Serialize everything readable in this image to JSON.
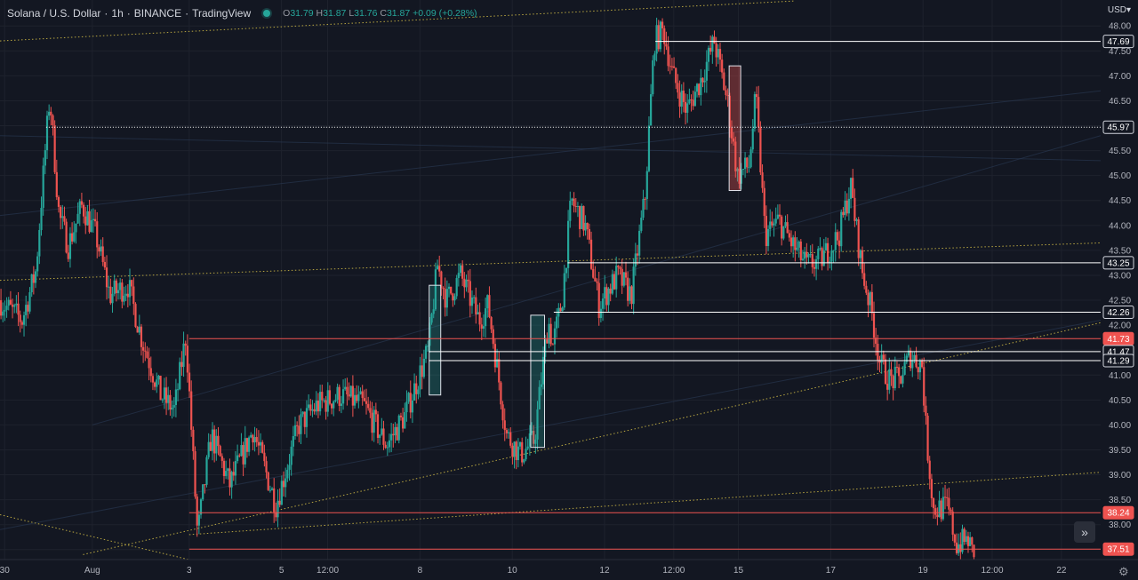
{
  "legend": {
    "title": "Solana / U.S. Dollar",
    "interval": "1h",
    "exchange": "BINANCE",
    "provider": "TradingView",
    "open_label": "O",
    "open": "31.79",
    "high_label": "H",
    "high": "31.87",
    "low_label": "L",
    "low": "31.76",
    "close_label": "C",
    "close": "31.87",
    "change": "+0.09 (+0.28%)"
  },
  "price_axis": {
    "currency": "USD"
  },
  "buttons": {
    "scroll_to_realtime": "»",
    "settings_icon": "gear-icon"
  },
  "colors": {
    "up": "#26a69a",
    "down": "#ef5350",
    "background": "#131722",
    "level_line": "#ffffff",
    "highlight_line": "#ef5350",
    "trend_line": "#c8b444"
  },
  "chart_data": {
    "type": "candlestick",
    "symbol": "SOLUSD",
    "timeframe": "1h",
    "y_axis": {
      "ticks": [
        37.5,
        38.0,
        38.5,
        39.0,
        39.5,
        40.0,
        40.5,
        41.0,
        41.5,
        42.0,
        42.5,
        43.0,
        43.5,
        44.0,
        44.5,
        45.0,
        45.5,
        46.0,
        46.5,
        47.0,
        47.5,
        48.0
      ],
      "range": [
        37.3,
        48.2
      ],
      "side": "right"
    },
    "x_axis": {
      "range_days": [
        0,
        23.85
      ],
      "ticks": [
        {
          "label": "30",
          "day": 0.1
        },
        {
          "label": "Aug",
          "day": 2.0
        },
        {
          "label": "3",
          "day": 4.1
        },
        {
          "label": "5",
          "day": 6.1
        },
        {
          "label": "12:00",
          "day": 7.1
        },
        {
          "label": "8",
          "day": 9.1
        },
        {
          "label": "10",
          "day": 11.1
        },
        {
          "label": "12",
          "day": 13.1
        },
        {
          "label": "12:00",
          "day": 14.6
        },
        {
          "label": "15",
          "day": 16.0
        },
        {
          "label": "17",
          "day": 18.0
        },
        {
          "label": "19",
          "day": 20.0
        },
        {
          "label": "12:00",
          "day": 21.5
        },
        {
          "label": "22",
          "day": 23.0
        }
      ]
    },
    "price_path": [
      [
        0.0,
        42.5
      ],
      [
        0.5,
        42.1
      ],
      [
        0.8,
        43.1
      ],
      [
        1.0,
        45.5
      ],
      [
        1.1,
        46.6
      ],
      [
        1.3,
        44.2
      ],
      [
        1.5,
        43.6
      ],
      [
        1.8,
        44.4
      ],
      [
        2.1,
        43.8
      ],
      [
        2.4,
        42.6
      ],
      [
        2.8,
        42.8
      ],
      [
        3.1,
        41.7
      ],
      [
        3.5,
        40.6
      ],
      [
        3.8,
        40.3
      ],
      [
        4.05,
        41.8
      ],
      [
        4.3,
        37.8
      ],
      [
        4.6,
        39.8
      ],
      [
        5.0,
        38.8
      ],
      [
        5.5,
        39.9
      ],
      [
        6.0,
        38.4
      ],
      [
        6.5,
        40.0
      ],
      [
        6.9,
        40.4
      ],
      [
        7.4,
        40.6
      ],
      [
        7.9,
        40.4
      ],
      [
        8.4,
        39.6
      ],
      [
        8.8,
        40.2
      ],
      [
        9.3,
        41.5
      ],
      [
        9.5,
        43.2
      ],
      [
        9.7,
        42.5
      ],
      [
        10.0,
        43.0
      ],
      [
        10.4,
        42.1
      ],
      [
        10.6,
        42.4
      ],
      [
        10.8,
        41.1
      ],
      [
        11.0,
        39.8
      ],
      [
        11.3,
        39.4
      ],
      [
        11.6,
        39.7
      ],
      [
        11.9,
        42.1
      ],
      [
        12.0,
        41.6
      ],
      [
        12.2,
        42.5
      ],
      [
        12.4,
        44.5
      ],
      [
        12.7,
        44.0
      ],
      [
        13.0,
        42.4
      ],
      [
        13.4,
        43.0
      ],
      [
        13.7,
        42.6
      ],
      [
        14.0,
        44.6
      ],
      [
        14.2,
        47.7
      ],
      [
        14.4,
        47.9
      ],
      [
        14.6,
        47.0
      ],
      [
        14.9,
        46.3
      ],
      [
        15.2,
        46.9
      ],
      [
        15.5,
        47.7
      ],
      [
        15.8,
        46.4
      ],
      [
        16.0,
        45.0
      ],
      [
        16.25,
        45.2
      ],
      [
        16.4,
        46.6
      ],
      [
        16.6,
        43.8
      ],
      [
        16.9,
        44.1
      ],
      [
        17.2,
        43.6
      ],
      [
        17.5,
        43.2
      ],
      [
        17.8,
        43.3
      ],
      [
        18.2,
        43.8
      ],
      [
        18.45,
        44.8
      ],
      [
        18.7,
        43.1
      ],
      [
        18.9,
        42.3
      ],
      [
        19.1,
        41.2
      ],
      [
        19.3,
        40.9
      ],
      [
        19.5,
        40.9
      ],
      [
        19.75,
        41.4
      ],
      [
        20.0,
        41.2
      ],
      [
        20.1,
        39.7
      ],
      [
        20.25,
        38.3
      ],
      [
        20.55,
        38.35
      ],
      [
        20.75,
        37.6
      ],
      [
        21.0,
        37.7
      ],
      [
        21.1,
        37.4
      ]
    ],
    "drawings": {
      "horizontal_levels": [
        {
          "price": 47.69,
          "from_day": 14.2,
          "color": "white"
        },
        {
          "price": 45.97,
          "from_day": 1.0,
          "color": "white",
          "style": "dotted"
        },
        {
          "price": 43.25,
          "from_day": 12.3,
          "color": "white"
        },
        {
          "price": 42.26,
          "from_day": 12.0,
          "color": "white"
        },
        {
          "price": 41.73,
          "from_day": 4.1,
          "color": "red",
          "highlight": true
        },
        {
          "price": 41.47,
          "from_day": 9.3,
          "color": "white"
        },
        {
          "price": 41.29,
          "from_day": 9.3,
          "color": "white"
        },
        {
          "price": 38.24,
          "from_day": 4.1,
          "color": "red",
          "highlight": true
        },
        {
          "price": 37.51,
          "from_day": 4.1,
          "color": "red",
          "highlight": true
        }
      ],
      "boxes": [
        {
          "from_day": 9.3,
          "to_day": 9.55,
          "low": 40.6,
          "high": 42.8,
          "kind": "green"
        },
        {
          "from_day": 11.5,
          "to_day": 11.8,
          "low": 39.55,
          "high": 42.2,
          "kind": "green"
        },
        {
          "from_day": 15.8,
          "to_day": 16.05,
          "low": 44.7,
          "high": 47.2,
          "kind": "red"
        }
      ],
      "trend_lines": [
        {
          "from": [
            0.0,
            47.7
          ],
          "to": [
            17.2,
            48.5
          ],
          "style": "dotted"
        },
        {
          "from": [
            0.0,
            42.9
          ],
          "to": [
            23.85,
            43.65
          ],
          "style": "dotted"
        },
        {
          "from": [
            1.8,
            37.4
          ],
          "to": [
            23.85,
            42.05
          ],
          "style": "dotted"
        },
        {
          "from": [
            4.1,
            37.8
          ],
          "to": [
            23.85,
            39.05
          ],
          "style": "dotted"
        },
        {
          "from": [
            0.0,
            38.2
          ],
          "to": [
            5.0,
            37.1
          ],
          "style": "dotted"
        }
      ]
    }
  }
}
